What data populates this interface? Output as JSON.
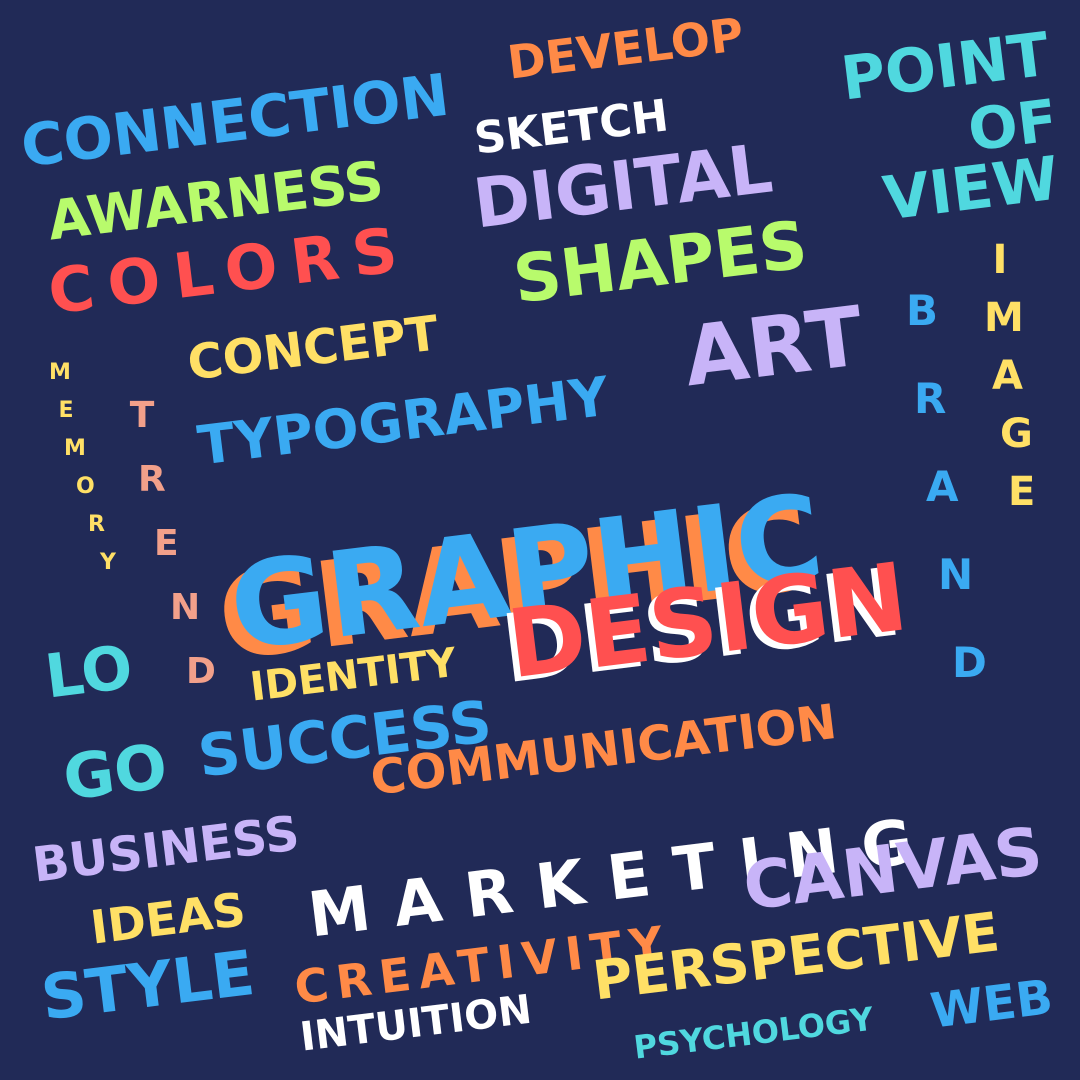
{
  "background": "#212a57",
  "words": [
    {
      "id": "connection",
      "text": "CONNECTION",
      "color": "#3aaaf2"
    },
    {
      "id": "develop",
      "text": "DEVELOP",
      "color": "#ff8a47"
    },
    {
      "id": "point",
      "text": "POINT",
      "color": "#50d8df"
    },
    {
      "id": "of",
      "text": "OF",
      "color": "#50d8df"
    },
    {
      "id": "view",
      "text": "VIEW",
      "color": "#50d8df"
    },
    {
      "id": "sketch",
      "text": "SKETCH",
      "color": "#ffffff"
    },
    {
      "id": "awarness",
      "text": "AWARNESS",
      "color": "#b8fb6c"
    },
    {
      "id": "digital",
      "text": "DIGITAL",
      "color": "#c8b4f8"
    },
    {
      "id": "colors",
      "text": "COLORS",
      "color": "#ff5050"
    },
    {
      "id": "shapes",
      "text": "SHAPES",
      "color": "#b8fb6c"
    },
    {
      "id": "concept",
      "text": "CONCEPT",
      "color": "#ffe066"
    },
    {
      "id": "art",
      "text": "ART",
      "color": "#c8b4f8"
    },
    {
      "id": "typography",
      "text": "TYPOGRAPHY",
      "color": "#3aaaf2"
    },
    {
      "id": "graphic",
      "text": "GRAPHIC",
      "color": "#3aaaf2",
      "shadow": "#ff8a47"
    },
    {
      "id": "design",
      "text": "DESIGN",
      "color": "#ff5050",
      "shadow": "#ffffff"
    },
    {
      "id": "identity",
      "text": "IDENTITY",
      "color": "#ffe066"
    },
    {
      "id": "lo",
      "text": "LO",
      "color": "#50d8df"
    },
    {
      "id": "go",
      "text": "GO",
      "color": "#50d8df"
    },
    {
      "id": "success",
      "text": "SUCCESS",
      "color": "#3aaaf2"
    },
    {
      "id": "communication",
      "text": "COMMUNICATION",
      "color": "#ff8a47"
    },
    {
      "id": "business",
      "text": "BUSINESS",
      "color": "#c8b4f8"
    },
    {
      "id": "marketing",
      "text": "MARKETING",
      "color": "#ffffff"
    },
    {
      "id": "ideas",
      "text": "IDEAS",
      "color": "#ffe066"
    },
    {
      "id": "canvas",
      "text": "CANVAS",
      "color": "#c8b4f8"
    },
    {
      "id": "creativity",
      "text": "CREATIVITY",
      "color": "#ff8a47"
    },
    {
      "id": "style",
      "text": "STYLE",
      "color": "#3aaaf2"
    },
    {
      "id": "perspective",
      "text": "PERSPECTIVE",
      "color": "#ffe066"
    },
    {
      "id": "intuition",
      "text": "INTUITION",
      "color": "#ffffff"
    },
    {
      "id": "psychology",
      "text": "PSYCHOLOGY",
      "color": "#50d8df"
    },
    {
      "id": "web",
      "text": "WEB",
      "color": "#3aaaf2"
    }
  ],
  "vertical_words": [
    {
      "id": "memory",
      "letters": [
        "M",
        "E",
        "M",
        "O",
        "R",
        "Y"
      ],
      "color": "#ffe066"
    },
    {
      "id": "trend",
      "letters": [
        "T",
        "R",
        "E",
        "N",
        "D"
      ],
      "color": "#f2a08a"
    },
    {
      "id": "brand",
      "letters": [
        "B",
        "R",
        "A",
        "N",
        "D"
      ],
      "color": "#3aaaf2"
    },
    {
      "id": "image",
      "letters": [
        "I",
        "M",
        "A",
        "G",
        "E"
      ],
      "color": "#ffe066"
    }
  ]
}
